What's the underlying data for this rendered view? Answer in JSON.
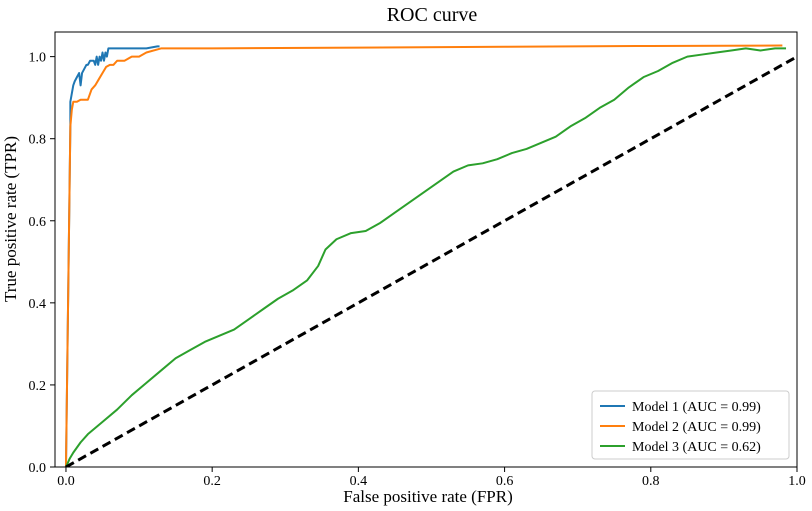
{
  "chart_data": {
    "type": "line",
    "title": "ROC curve",
    "xlabel": "False positive rate (FPR)",
    "ylabel": "True positive rate (TPR)",
    "xlim": [
      -0.015,
      1.0
    ],
    "ylim": [
      0.0,
      1.06
    ],
    "xticks": [
      0.0,
      0.2,
      0.4,
      0.6,
      0.8,
      1.0
    ],
    "xtick_labels": [
      "0.0",
      "0.2",
      "0.4",
      "0.6",
      "0.8",
      "1.0"
    ],
    "yticks": [
      0.0,
      0.2,
      0.4,
      0.6,
      0.8,
      1.0
    ],
    "ytick_labels": [
      "0.0",
      "0.2",
      "0.4",
      "0.6",
      "0.8",
      "1.0"
    ],
    "grid": false,
    "legend_position": "lower-right",
    "series": [
      {
        "name": "Model 1 (AUC = 0.99)",
        "color": "#1f77b4",
        "x": [
          0.0,
          0.006,
          0.006,
          0.008,
          0.01,
          0.012,
          0.015,
          0.018,
          0.02,
          0.022,
          0.025,
          0.028,
          0.03,
          0.033,
          0.036,
          0.038,
          0.04,
          0.042,
          0.044,
          0.046,
          0.048,
          0.05,
          0.052,
          0.054,
          0.056,
          0.058,
          0.06,
          0.07,
          0.09,
          0.11,
          0.125,
          0.128
        ],
        "y": [
          0.0,
          0.83,
          0.89,
          0.91,
          0.93,
          0.94,
          0.95,
          0.96,
          0.93,
          0.96,
          0.97,
          0.98,
          0.98,
          0.99,
          0.99,
          0.99,
          0.98,
          1.0,
          0.98,
          1.0,
          0.99,
          1.01,
          0.99,
          1.01,
          1.0,
          1.02,
          1.02,
          1.02,
          1.02,
          1.02,
          1.025,
          1.025
        ]
      },
      {
        "name": "Model 2 (AUC = 0.99)",
        "color": "#ff7f0e",
        "x": [
          0.0,
          0.006,
          0.008,
          0.01,
          0.015,
          0.02,
          0.03,
          0.035,
          0.04,
          0.045,
          0.05,
          0.055,
          0.06,
          0.065,
          0.07,
          0.08,
          0.09,
          0.1,
          0.11,
          0.13,
          0.2,
          0.4,
          0.6,
          0.8,
          0.98
        ],
        "y": [
          0.0,
          0.83,
          0.87,
          0.89,
          0.89,
          0.895,
          0.895,
          0.92,
          0.93,
          0.945,
          0.96,
          0.975,
          0.98,
          0.98,
          0.99,
          0.99,
          1.0,
          1.0,
          1.01,
          1.02,
          1.02,
          1.022,
          1.024,
          1.026,
          1.027
        ]
      },
      {
        "name": "Model 3 (AUC = 0.62)",
        "color": "#2ca02c",
        "x": [
          0.0,
          0.005,
          0.01,
          0.02,
          0.03,
          0.05,
          0.07,
          0.09,
          0.11,
          0.13,
          0.15,
          0.17,
          0.19,
          0.21,
          0.23,
          0.25,
          0.27,
          0.29,
          0.31,
          0.33,
          0.345,
          0.355,
          0.37,
          0.39,
          0.41,
          0.43,
          0.45,
          0.47,
          0.49,
          0.51,
          0.53,
          0.55,
          0.57,
          0.59,
          0.61,
          0.63,
          0.65,
          0.67,
          0.69,
          0.71,
          0.73,
          0.75,
          0.77,
          0.79,
          0.81,
          0.83,
          0.85,
          0.87,
          0.89,
          0.91,
          0.93,
          0.95,
          0.97,
          0.985
        ],
        "y": [
          0.0,
          0.02,
          0.035,
          0.06,
          0.08,
          0.11,
          0.14,
          0.175,
          0.205,
          0.235,
          0.265,
          0.285,
          0.305,
          0.32,
          0.335,
          0.36,
          0.385,
          0.41,
          0.43,
          0.455,
          0.49,
          0.53,
          0.555,
          0.57,
          0.575,
          0.595,
          0.62,
          0.645,
          0.67,
          0.695,
          0.72,
          0.735,
          0.74,
          0.75,
          0.765,
          0.775,
          0.79,
          0.805,
          0.83,
          0.85,
          0.875,
          0.895,
          0.925,
          0.95,
          0.965,
          0.985,
          1.0,
          1.005,
          1.01,
          1.015,
          1.02,
          1.015,
          1.02,
          1.02
        ]
      },
      {
        "name": "",
        "color": "#000000",
        "dashed": true,
        "x": [
          0.0,
          1.0
        ],
        "y": [
          0.0,
          1.0
        ]
      }
    ]
  }
}
